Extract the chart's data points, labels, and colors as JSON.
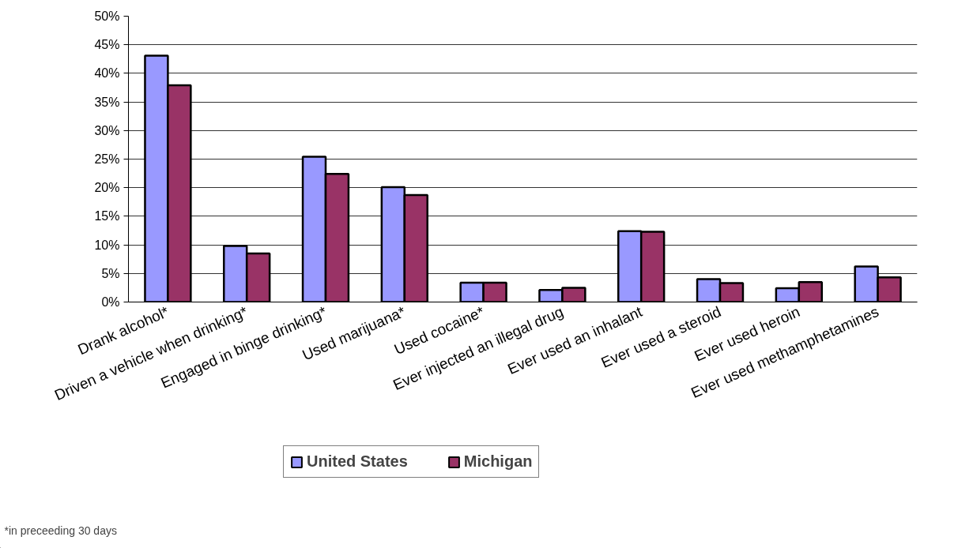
{
  "chart_data": {
    "type": "bar",
    "categories": [
      "Drank alcohol*",
      "Driven a vehicle when drinking*",
      "Engaged in binge drinking*",
      "Used marijuana*",
      "Used cocaine*",
      "Ever injected an illegal drug",
      "Ever used an inhalant",
      "Ever used a steroid",
      "Ever used heroin",
      "Ever used methamphetamines"
    ],
    "series": [
      {
        "name": "United States",
        "color": "#9999ff",
        "values": [
          43.1,
          9.8,
          25.4,
          20.1,
          3.4,
          2.1,
          12.4,
          4.0,
          2.4,
          6.2
        ]
      },
      {
        "name": "Michigan",
        "color": "#993366",
        "values": [
          37.9,
          8.5,
          22.4,
          18.7,
          3.4,
          2.5,
          12.3,
          3.3,
          3.5,
          4.3
        ]
      }
    ],
    "ylim": [
      0,
      50
    ],
    "yticks": [
      {
        "value": 0,
        "label": "0%"
      },
      {
        "value": 5,
        "label": "5%"
      },
      {
        "value": 10,
        "label": "10%"
      },
      {
        "value": 15,
        "label": "15%"
      },
      {
        "value": 20,
        "label": "20%"
      },
      {
        "value": 25,
        "label": "25%"
      },
      {
        "value": 30,
        "label": "30%"
      },
      {
        "value": 35,
        "label": "35%"
      },
      {
        "value": 40,
        "label": "40%"
      },
      {
        "value": 45,
        "label": "45%"
      },
      {
        "value": 50,
        "label": "50%"
      }
    ],
    "grid": "y",
    "legend": "bottom",
    "annotations": [
      "*in preceeding 30 days"
    ]
  }
}
